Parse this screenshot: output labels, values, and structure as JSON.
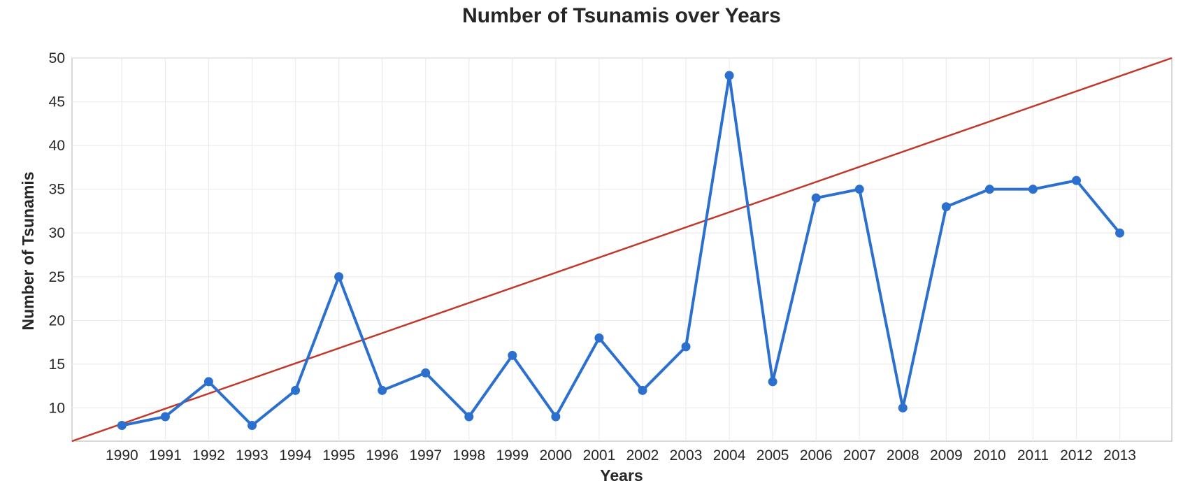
{
  "chart_data": {
    "type": "line",
    "title": "Number of Tsunamis over Years",
    "xlabel": "Years",
    "ylabel": "Number of Tsunamis",
    "categories": [
      "1990",
      "1991",
      "1992",
      "1993",
      "1994",
      "1995",
      "1996",
      "1997",
      "1998",
      "1999",
      "2000",
      "2001",
      "2002",
      "2003",
      "2004",
      "2005",
      "2006",
      "2007",
      "2008",
      "2009",
      "2010",
      "2011",
      "2012",
      "2013"
    ],
    "series": [
      {
        "color": "#2b6fcf",
        "marker": "circle",
        "values": [
          8,
          9,
          13,
          8,
          12,
          25,
          12,
          14,
          9,
          16,
          9,
          18,
          12,
          17,
          48,
          13,
          34,
          35,
          10,
          33,
          35,
          35,
          36,
          30
        ]
      }
    ],
    "trend_line": {
      "color": "#c0392b",
      "x": [
        1988.85,
        2014.2
      ],
      "y": [
        6.2,
        50.0
      ]
    },
    "xlim": [
      1988.85,
      2014.2
    ],
    "ylim": [
      6.2,
      50
    ],
    "yticks": [
      10,
      15,
      20,
      25,
      30,
      35,
      40,
      45,
      50
    ],
    "grid": true,
    "legend": "none"
  }
}
